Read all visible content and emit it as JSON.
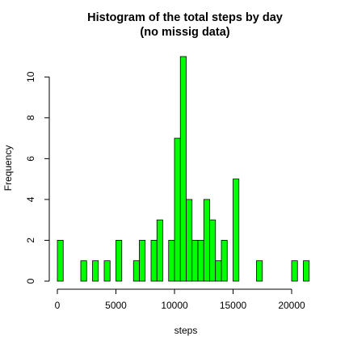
{
  "chart_data": {
    "type": "bar",
    "title_line1": "Histogram of the total steps by day",
    "title_line2": "(no missig data)",
    "xlabel": "steps",
    "ylabel": "Frequency",
    "bar_color": "#00ff00",
    "edge_color": "#000000",
    "bin_width": 500,
    "xlim": [
      0,
      22000
    ],
    "ylim": [
      0,
      11
    ],
    "x_ticks": [
      0,
      5000,
      10000,
      15000,
      20000
    ],
    "y_ticks": [
      0,
      2,
      4,
      6,
      8,
      10
    ],
    "bins": [
      {
        "start": 0,
        "count": 2
      },
      {
        "start": 2000,
        "count": 1
      },
      {
        "start": 3000,
        "count": 1
      },
      {
        "start": 4000,
        "count": 1
      },
      {
        "start": 5000,
        "count": 2
      },
      {
        "start": 6500,
        "count": 1
      },
      {
        "start": 7000,
        "count": 2
      },
      {
        "start": 8000,
        "count": 2
      },
      {
        "start": 8500,
        "count": 3
      },
      {
        "start": 9500,
        "count": 2
      },
      {
        "start": 10000,
        "count": 7
      },
      {
        "start": 10500,
        "count": 11
      },
      {
        "start": 11000,
        "count": 4
      },
      {
        "start": 11500,
        "count": 2
      },
      {
        "start": 12000,
        "count": 2
      },
      {
        "start": 12500,
        "count": 4
      },
      {
        "start": 13000,
        "count": 3
      },
      {
        "start": 13500,
        "count": 1
      },
      {
        "start": 14000,
        "count": 2
      },
      {
        "start": 15000,
        "count": 5
      },
      {
        "start": 17000,
        "count": 1
      },
      {
        "start": 20000,
        "count": 1
      },
      {
        "start": 21000,
        "count": 1
      }
    ]
  }
}
